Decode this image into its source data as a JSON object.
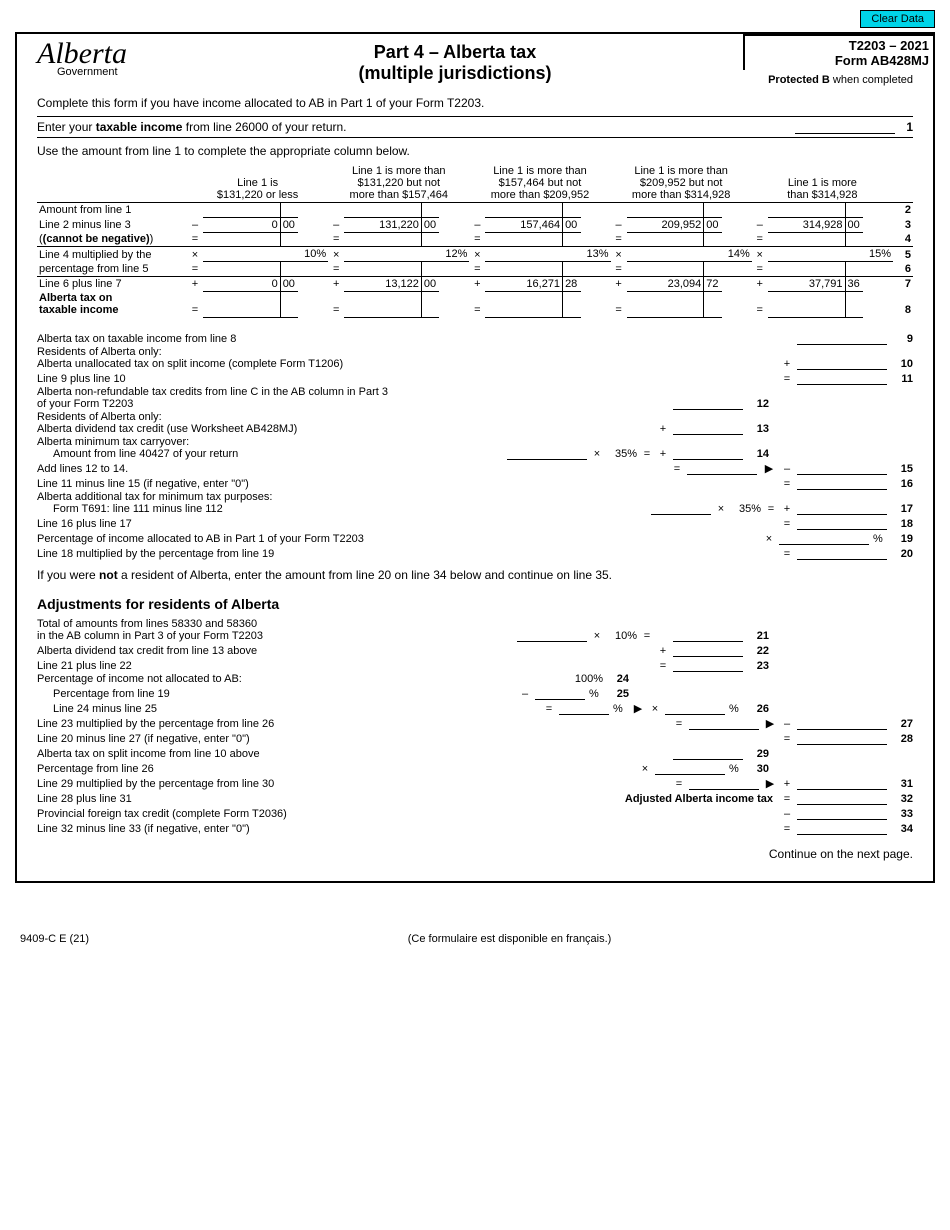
{
  "buttons": {
    "clear": "Clear Data"
  },
  "header": {
    "logo": "Alberta",
    "logo_sub": "Government",
    "title_1": "Part 4 – Alberta tax",
    "title_2": "(multiple jurisdictions)",
    "form_code": "T2203 – 2021",
    "form_name": "Form AB428MJ",
    "protected": "Protected B",
    "protected_suffix": " when completed"
  },
  "intro": "Complete this form if you have income allocated to AB in Part 1 of your Form T2203.",
  "enter_line": {
    "text": "Enter your ",
    "bold": "taxable income",
    "text2": " from line 26000 of your return.",
    "num": "1"
  },
  "use_amount": "Use the amount from line 1 to complete the appropriate column below.",
  "cols": [
    {
      "h1": "Line 1 is",
      "h2": "$131,220 or less"
    },
    {
      "h1": "Line 1 is more than",
      "h2": "$131,220 but not",
      "h3": "more than $157,464"
    },
    {
      "h1": "Line 1 is more than",
      "h2": "$157,464 but not",
      "h3": "more than $209,952"
    },
    {
      "h1": "Line 1 is more than",
      "h2": "$209,952 but not",
      "h3": "more than $314,928"
    },
    {
      "h1": "Line 1 is more",
      "h2": "than $314,928"
    }
  ],
  "rows": {
    "r2": {
      "label": "Amount from line 1",
      "ln": "2"
    },
    "r3": {
      "label_a": "Line 2 minus line 3",
      "label_b": "(cannot be negative)",
      "op": "–",
      "op2": "=",
      "c1": "0",
      "c1c": "00",
      "c2": "131,220",
      "c2c": "00",
      "c3": "157,464",
      "c3c": "00",
      "c4": "209,952",
      "c4c": "00",
      "c5": "314,928",
      "c5c": "00",
      "ln3": "3",
      "ln4": "4"
    },
    "r5": {
      "label_a": "Line 4 multiplied by the",
      "label_b": "percentage from line 5",
      "op": "×",
      "op2": "=",
      "p1": "10%",
      "p2": "12%",
      "p3": "13%",
      "p4": "14%",
      "p5": "15%",
      "ln5": "5",
      "ln6": "6"
    },
    "r7": {
      "label_a": "Line 6 plus line 7",
      "label_b1": "Alberta tax on",
      "label_b2": "taxable income",
      "op": "+",
      "op2": "=",
      "c1": "0",
      "c1c": "00",
      "c2": "13,122",
      "c2c": "00",
      "c3": "16,271",
      "c3c": "28",
      "c4": "23,094",
      "c4c": "72",
      "c5": "37,791",
      "c5c": "36",
      "ln7": "7",
      "ln8": "8"
    }
  },
  "mid": [
    {
      "label": "Alberta tax on taxable income from line 8",
      "op": "",
      "ln": "9"
    },
    {
      "label_a": "Residents of Alberta only:",
      "label_b": "Alberta unallocated tax on split income (complete Form T1206)",
      "op": "+",
      "ln": "10"
    },
    {
      "label": "Line 9 plus line 10",
      "op": "=",
      "ln": "11"
    },
    {
      "label_a": "Alberta non-refundable tax credits from line C in the AB column in Part 3",
      "label_b": "of your Form T2203",
      "short": true,
      "ln": "12"
    },
    {
      "label_a": "Residents of Alberta only:",
      "label_b": "Alberta dividend tax credit (use Worksheet AB428MJ)",
      "short": true,
      "op": "+",
      "ln": "13"
    },
    {
      "label_a": "Alberta minimum tax carryover:",
      "label_b": "Amount from line 40427 of your return",
      "carry": true,
      "pct": "35%",
      "op_mid": "×",
      "op_eq": "=",
      "short": true,
      "op": "+",
      "ln": "14"
    },
    {
      "label": "Add lines 12 to 14.",
      "short_eq": true,
      "arrow": true,
      "op": "–",
      "ln": "15"
    },
    {
      "label": "Line 11 minus line 15 (if negative, enter \"0\")",
      "op": "=",
      "ln": "16"
    },
    {
      "label_a": "Alberta additional tax for minimum tax purposes:",
      "label_b": "Form T691: line 111 minus line 112",
      "mult": true,
      "pct": "35%",
      "op_mid": "×",
      "op_eq": "=",
      "op": "+",
      "ln": "17"
    },
    {
      "label": "Line 16 plus line 17",
      "op": "=",
      "ln": "18"
    },
    {
      "label": "Percentage of income allocated to AB in Part 1 of your Form T2203",
      "op": "×",
      "pct_suffix": "%",
      "ln": "19"
    },
    {
      "label": "Line 18 multiplied by the percentage from line 19",
      "op": "=",
      "ln": "20"
    }
  ],
  "not_resident": "If you were not a resident of Alberta, enter the amount from line 20 on line 34 below and continue on line 35.",
  "adjustments_h": "Adjustments for residents of Alberta",
  "adj": [
    {
      "label_a": "Total of amounts from lines 58330 and 58360",
      "label_b": "in the AB column in Part 3 of your Form T2203",
      "carry": true,
      "pct": "10%",
      "op_mid": "×",
      "op_eq": "=",
      "short": true,
      "ln": "21"
    },
    {
      "label": "Alberta dividend tax credit from line 13 above",
      "short": true,
      "op": "+",
      "ln": "22"
    },
    {
      "label": "Line 21 plus line 22",
      "short": true,
      "op": "=",
      "ln": "23"
    },
    {
      "label": "Percentage of income not allocated to AB:",
      "static": "100%",
      "ln": "24",
      "noline": true
    },
    {
      "label": "Percentage from line 19",
      "indent": true,
      "op": "–",
      "suffix": "%",
      "ln": "25",
      "noline": true
    },
    {
      "label": "Line 24 minus line 25",
      "indent": true,
      "op": "=",
      "suffix": "%",
      "arrow": true,
      "mult2": "×",
      "suffix2": "%",
      "ln": "26"
    },
    {
      "label": "Line 23 multiplied by the percentage from line 26",
      "short_eq2": true,
      "arrow": true,
      "op_r": "–",
      "ln": "27"
    },
    {
      "label": "Line 20 minus line 27 (if negative, enter \"0\")",
      "op_r": "=",
      "ln": "28"
    },
    {
      "label": "Alberta tax on split income from line 10 above",
      "short": true,
      "ln": "29"
    },
    {
      "label": "Percentage from line 26",
      "short": true,
      "op": "×",
      "suffix": "%",
      "ln": "30"
    },
    {
      "label": "Line 29 multiplied by the percentage from line 30",
      "short_eq2": true,
      "arrow": true,
      "op_r": "+",
      "ln": "31"
    },
    {
      "label": "Line 28 plus line 31",
      "bold_r": "Adjusted Alberta income tax",
      "op_r": "=",
      "ln": "32"
    },
    {
      "label": "Provincial foreign tax credit (complete Form T2036)",
      "op_r": "–",
      "ln": "33"
    },
    {
      "label": "Line 32 minus line 33 (if negative, enter \"0\")",
      "op_r": "=",
      "ln": "34"
    }
  ],
  "continue": "Continue on the next page.",
  "footer": {
    "left": "9409-C E (21)",
    "center": "(Ce formulaire est disponible en français.)"
  }
}
